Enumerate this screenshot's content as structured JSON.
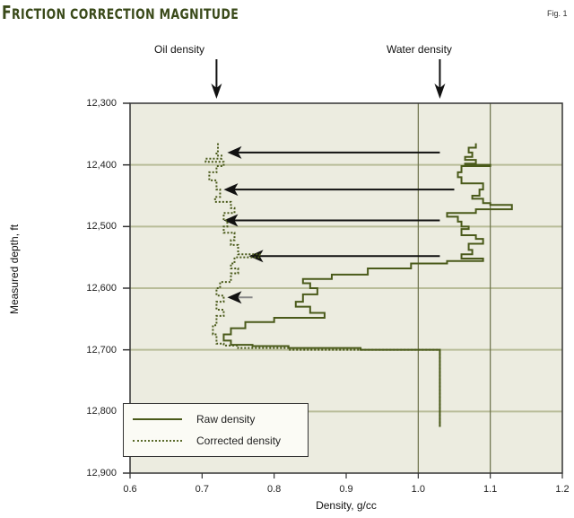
{
  "figure": {
    "title_first_letter": "F",
    "title_rest": "RICTION CORRECTION MAGNITUDE",
    "fig_label": "Fig. 1"
  },
  "annotations": {
    "oil_density": {
      "label": "Oil density",
      "x_value": 0.72
    },
    "water_density": {
      "label": "Water density",
      "x_value": 1.03
    }
  },
  "axes": {
    "x_label": "Density, g/cc",
    "y_label": "Measured depth, ft",
    "x_ticks": [
      "0.6",
      "0.7",
      "0.8",
      "0.9",
      "1.0",
      "1.1",
      "1.2"
    ],
    "y_ticks": [
      "12,300",
      "12,400",
      "12,500",
      "12,600",
      "12,700",
      "12,800",
      "12,900"
    ]
  },
  "legend": {
    "raw": "Raw density",
    "corrected": "Corrected density"
  },
  "colors": {
    "plot_bg": "#ecece0",
    "grid": "#b8bc98",
    "raw_line": "#4a5a1a",
    "corrected_line": "#4a5a1a",
    "arrow": "#111111",
    "title": "#3a4a1a"
  },
  "chart_data": {
    "type": "line",
    "title": "Friction correction magnitude",
    "xlabel": "Density, g/cc",
    "ylabel": "Measured depth, ft",
    "xlim": [
      0.6,
      1.2
    ],
    "ylim": [
      12900,
      12300
    ],
    "y_inverted": true,
    "grid": {
      "horizontal": [
        12400,
        12500,
        12600,
        12700,
        12800
      ],
      "vertical": [
        1.0,
        1.1
      ]
    },
    "legend_position": "lower left",
    "series": [
      {
        "name": "Raw density",
        "style": "solid",
        "points": [
          [
            1.08,
            12365
          ],
          [
            1.07,
            12372
          ],
          [
            1.075,
            12380
          ],
          [
            1.065,
            12387
          ],
          [
            1.08,
            12392
          ],
          [
            1.065,
            12398
          ],
          [
            1.1,
            12400
          ],
          [
            1.06,
            12402
          ],
          [
            1.055,
            12412
          ],
          [
            1.06,
            12420
          ],
          [
            1.09,
            12430
          ],
          [
            1.085,
            12440
          ],
          [
            1.075,
            12450
          ],
          [
            1.09,
            12455
          ],
          [
            1.1,
            12462
          ],
          [
            1.13,
            12465
          ],
          [
            1.08,
            12472
          ],
          [
            1.04,
            12478
          ],
          [
            1.055,
            12484
          ],
          [
            1.06,
            12492
          ],
          [
            1.07,
            12500
          ],
          [
            1.06,
            12504
          ],
          [
            1.08,
            12514
          ],
          [
            1.09,
            12520
          ],
          [
            1.07,
            12528
          ],
          [
            1.075,
            12538
          ],
          [
            1.06,
            12545
          ],
          [
            1.09,
            12552
          ],
          [
            1.04,
            12556
          ],
          [
            0.99,
            12560
          ],
          [
            0.93,
            12568
          ],
          [
            0.88,
            12578
          ],
          [
            0.84,
            12585
          ],
          [
            0.85,
            12592
          ],
          [
            0.86,
            12600
          ],
          [
            0.84,
            12610
          ],
          [
            0.83,
            12622
          ],
          [
            0.85,
            12630
          ],
          [
            0.87,
            12640
          ],
          [
            0.8,
            12648
          ],
          [
            0.76,
            12655
          ],
          [
            0.74,
            12665
          ],
          [
            0.73,
            12675
          ],
          [
            0.74,
            12685
          ],
          [
            0.77,
            12692
          ],
          [
            0.82,
            12694
          ],
          [
            0.92,
            12697
          ],
          [
            1.03,
            12700
          ],
          [
            1.03,
            12825
          ]
        ]
      },
      {
        "name": "Corrected density",
        "style": "dotted",
        "points": [
          [
            0.722,
            12365
          ],
          [
            0.72,
            12378
          ],
          [
            0.727,
            12385
          ],
          [
            0.705,
            12390
          ],
          [
            0.73,
            12395
          ],
          [
            0.72,
            12402
          ],
          [
            0.71,
            12412
          ],
          [
            0.72,
            12425
          ],
          [
            0.725,
            12440
          ],
          [
            0.718,
            12452
          ],
          [
            0.74,
            12460
          ],
          [
            0.745,
            12470
          ],
          [
            0.73,
            12478
          ],
          [
            0.735,
            12490
          ],
          [
            0.73,
            12500
          ],
          [
            0.745,
            12510
          ],
          [
            0.74,
            12522
          ],
          [
            0.75,
            12530
          ],
          [
            0.78,
            12545
          ],
          [
            0.745,
            12550
          ],
          [
            0.74,
            12560
          ],
          [
            0.75,
            12568
          ],
          [
            0.74,
            12576
          ],
          [
            0.725,
            12590
          ],
          [
            0.72,
            12600
          ],
          [
            0.73,
            12612
          ],
          [
            0.72,
            12622
          ],
          [
            0.73,
            12635
          ],
          [
            0.72,
            12645
          ],
          [
            0.715,
            12660
          ],
          [
            0.72,
            12675
          ],
          [
            0.73,
            12690
          ],
          [
            0.75,
            12693
          ],
          [
            0.82,
            12697
          ],
          [
            0.9,
            12700
          ],
          [
            1.03,
            12700
          ],
          [
            1.03,
            12825
          ]
        ]
      }
    ],
    "correction_arrows": [
      {
        "depth": 12380,
        "from": 1.03,
        "to": 0.735
      },
      {
        "depth": 12440,
        "from": 1.05,
        "to": 0.73
      },
      {
        "depth": 12490,
        "from": 1.03,
        "to": 0.73
      },
      {
        "depth": 12548,
        "from": 1.03,
        "to": 0.765
      },
      {
        "depth": 12615,
        "from": 0.77,
        "to": 0.735
      }
    ]
  }
}
